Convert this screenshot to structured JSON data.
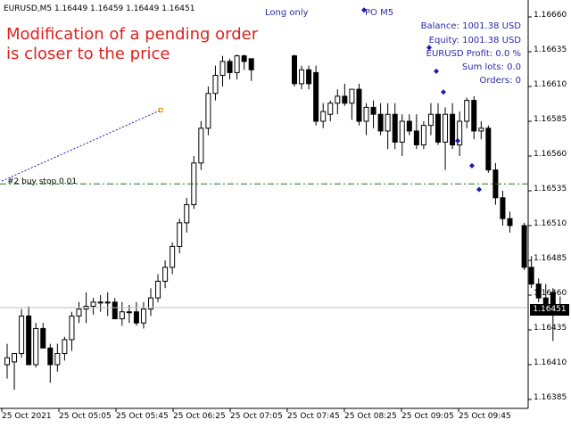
{
  "header": {
    "symbol_line": "EURUSD,M5  1.16449 1.16459 1.16449 1.16451",
    "mode": "Long only",
    "po_label": "PO  M5"
  },
  "annotation": {
    "line1": "Modification of a pending order",
    "line2": "is closer to the price"
  },
  "stats": [
    "Balance: 1001.38 USD",
    "Equity: 1001.38 USD",
    "EURUSD Profit: 0.0 %",
    "Sum lots: 0.0",
    "Orders: 0"
  ],
  "pending_order": {
    "label": "#2 buy stop 0.01",
    "price": 1.1654
  },
  "current_price": {
    "text": "1.16451",
    "value": 1.16451
  },
  "colors": {
    "bull": "#ffffff",
    "bear": "#000000",
    "wick": "#000000",
    "order_line": "#1a7a1a",
    "bid_line": "#bdbdbd",
    "trend_line": "#1a1ab4",
    "markers": "#1a1ab4",
    "annotation": "#e0211d",
    "info_text": "#2a2aa8"
  },
  "chart_data": {
    "type": "candlestick",
    "symbol": "EURUSD",
    "timeframe": "M5",
    "y_ticks": [
      "1.16660",
      "1.16635",
      "1.16610",
      "1.16585",
      "1.16560",
      "1.16535",
      "1.16510",
      "1.16485",
      "1.16460",
      "1.16435",
      "1.16410",
      "1.16385"
    ],
    "y_range": [
      1.1638,
      1.1668
    ],
    "x_ticks": [
      "25 Oct 2021",
      "25 Oct 05:05",
      "25 Oct 05:45",
      "25 Oct 06:25",
      "25 Oct 07:05",
      "25 Oct 07:45",
      "25 Oct 08:25",
      "25 Oct 09:05",
      "25 Oct 09:45"
    ],
    "candles": [
      {
        "o": 1.1641,
        "h": 1.16425,
        "l": 1.164,
        "c": 1.16415
      },
      {
        "o": 1.16412,
        "h": 1.16418,
        "l": 1.16392,
        "c": 1.16418
      },
      {
        "o": 1.16418,
        "h": 1.1645,
        "l": 1.16415,
        "c": 1.16445
      },
      {
        "o": 1.16445,
        "h": 1.16452,
        "l": 1.1641,
        "c": 1.1641
      },
      {
        "o": 1.1641,
        "h": 1.1644,
        "l": 1.16408,
        "c": 1.16436
      },
      {
        "o": 1.16436,
        "h": 1.1644,
        "l": 1.16422,
        "c": 1.16422
      },
      {
        "o": 1.16422,
        "h": 1.16425,
        "l": 1.16397,
        "c": 1.1641
      },
      {
        "o": 1.1641,
        "h": 1.16425,
        "l": 1.16405,
        "c": 1.16418
      },
      {
        "o": 1.16418,
        "h": 1.1643,
        "l": 1.16413,
        "c": 1.16428
      },
      {
        "o": 1.16428,
        "h": 1.16448,
        "l": 1.1642,
        "c": 1.16445
      },
      {
        "o": 1.16445,
        "h": 1.16455,
        "l": 1.1644,
        "c": 1.1645
      },
      {
        "o": 1.1645,
        "h": 1.16462,
        "l": 1.1644,
        "c": 1.16452
      },
      {
        "o": 1.16452,
        "h": 1.16458,
        "l": 1.16446,
        "c": 1.16455
      },
      {
        "o": 1.16455,
        "h": 1.1646,
        "l": 1.16448,
        "c": 1.16455
      },
      {
        "o": 1.16455,
        "h": 1.16462,
        "l": 1.16445,
        "c": 1.16455
      },
      {
        "o": 1.16455,
        "h": 1.16458,
        "l": 1.16443,
        "c": 1.16443
      },
      {
        "o": 1.16443,
        "h": 1.16455,
        "l": 1.16438,
        "c": 1.16448
      },
      {
        "o": 1.16448,
        "h": 1.16453,
        "l": 1.1644,
        "c": 1.16448
      },
      {
        "o": 1.16448,
        "h": 1.16455,
        "l": 1.16438,
        "c": 1.1644
      },
      {
        "o": 1.1644,
        "h": 1.16455,
        "l": 1.16436,
        "c": 1.1645
      },
      {
        "o": 1.1645,
        "h": 1.16465,
        "l": 1.16445,
        "c": 1.16458
      },
      {
        "o": 1.16458,
        "h": 1.16475,
        "l": 1.16455,
        "c": 1.1647
      },
      {
        "o": 1.1647,
        "h": 1.16485,
        "l": 1.16465,
        "c": 1.1648
      },
      {
        "o": 1.1648,
        "h": 1.16498,
        "l": 1.16475,
        "c": 1.16495
      },
      {
        "o": 1.16495,
        "h": 1.16515,
        "l": 1.1649,
        "c": 1.16512
      },
      {
        "o": 1.16512,
        "h": 1.1653,
        "l": 1.16505,
        "c": 1.16525
      },
      {
        "o": 1.16525,
        "h": 1.1656,
        "l": 1.16522,
        "c": 1.16555
      },
      {
        "o": 1.16555,
        "h": 1.16585,
        "l": 1.1655,
        "c": 1.1658
      },
      {
        "o": 1.1658,
        "h": 1.1661,
        "l": 1.16575,
        "c": 1.16605
      },
      {
        "o": 1.16605,
        "h": 1.16625,
        "l": 1.166,
        "c": 1.16618
      },
      {
        "o": 1.16618,
        "h": 1.16632,
        "l": 1.1661,
        "c": 1.16628
      },
      {
        "o": 1.16628,
        "h": 1.1663,
        "l": 1.16615,
        "c": 1.1662
      },
      {
        "o": 1.1662,
        "h": 1.16633,
        "l": 1.16615,
        "c": 1.16632
      },
      {
        "o": 1.16632,
        "h": 1.16633,
        "l": 1.16622,
        "c": 1.16628
      },
      {
        "o": 1.1663,
        "h": 1.1663,
        "l": 1.16614,
        "c": 1.16622
      },
      null,
      null,
      null,
      null,
      null,
      {
        "o": 1.16632,
        "h": 1.16633,
        "l": 1.1661,
        "c": 1.16612
      },
      {
        "o": 1.16612,
        "h": 1.16625,
        "l": 1.16608,
        "c": 1.16622
      },
      {
        "o": 1.16622,
        "h": 1.16625,
        "l": 1.16608,
        "c": 1.16612
      },
      {
        "o": 1.1662,
        "h": 1.16625,
        "l": 1.16582,
        "c": 1.16585
      },
      {
        "o": 1.16585,
        "h": 1.16598,
        "l": 1.1658,
        "c": 1.16592
      },
      {
        "o": 1.1659,
        "h": 1.166,
        "l": 1.16585,
        "c": 1.16598
      },
      {
        "o": 1.16598,
        "h": 1.16608,
        "l": 1.1659,
        "c": 1.16603
      },
      {
        "o": 1.16603,
        "h": 1.16612,
        "l": 1.16596,
        "c": 1.16598
      },
      {
        "o": 1.16598,
        "h": 1.16608,
        "l": 1.16586,
        "c": 1.16608
      },
      {
        "o": 1.16608,
        "h": 1.16612,
        "l": 1.16582,
        "c": 1.16585
      },
      {
        "o": 1.16585,
        "h": 1.16598,
        "l": 1.16575,
        "c": 1.16595
      },
      {
        "o": 1.16595,
        "h": 1.166,
        "l": 1.1658,
        "c": 1.1659
      },
      {
        "o": 1.1659,
        "h": 1.16598,
        "l": 1.16575,
        "c": 1.16578
      },
      {
        "o": 1.16578,
        "h": 1.16598,
        "l": 1.16565,
        "c": 1.1659
      },
      {
        "o": 1.1659,
        "h": 1.16598,
        "l": 1.16565,
        "c": 1.1657
      },
      {
        "o": 1.1657,
        "h": 1.1659,
        "l": 1.1656,
        "c": 1.16585
      },
      {
        "o": 1.16585,
        "h": 1.1659,
        "l": 1.16575,
        "c": 1.16578
      },
      {
        "o": 1.16578,
        "h": 1.1659,
        "l": 1.16565,
        "c": 1.16568
      },
      {
        "o": 1.16568,
        "h": 1.16585,
        "l": 1.16565,
        "c": 1.16582
      },
      {
        "o": 1.16582,
        "h": 1.16598,
        "l": 1.16575,
        "c": 1.1659
      },
      {
        "o": 1.1659,
        "h": 1.16598,
        "l": 1.16568,
        "c": 1.1657
      },
      {
        "o": 1.1657,
        "h": 1.16595,
        "l": 1.1655,
        "c": 1.1659
      },
      {
        "o": 1.1659,
        "h": 1.16598,
        "l": 1.16565,
        "c": 1.16568
      },
      {
        "o": 1.16568,
        "h": 1.16592,
        "l": 1.1656,
        "c": 1.16585
      },
      {
        "o": 1.16585,
        "h": 1.16602,
        "l": 1.1658,
        "c": 1.166
      },
      {
        "o": 1.166,
        "h": 1.16603,
        "l": 1.16572,
        "c": 1.16578
      },
      {
        "o": 1.16578,
        "h": 1.16585,
        "l": 1.16572,
        "c": 1.1658
      },
      {
        "o": 1.1658,
        "h": 1.16582,
        "l": 1.16548,
        "c": 1.1655
      },
      {
        "o": 1.1655,
        "h": 1.16555,
        "l": 1.16525,
        "c": 1.1653
      },
      {
        "o": 1.1653,
        "h": 1.16535,
        "l": 1.1651,
        "c": 1.16515
      },
      {
        "o": 1.16515,
        "h": 1.1652,
        "l": 1.16505,
        "c": 1.1651
      },
      null,
      {
        "o": 1.1651,
        "h": 1.16512,
        "l": 1.16478,
        "c": 1.1648
      },
      {
        "o": 1.1648,
        "h": 1.16488,
        "l": 1.16465,
        "c": 1.16468
      },
      {
        "o": 1.16468,
        "h": 1.16472,
        "l": 1.16455,
        "c": 1.16458
      },
      {
        "o": 1.16458,
        "h": 1.16468,
        "l": 1.16448,
        "c": 1.1645
      },
      {
        "o": 1.16462,
        "h": 1.16465,
        "l": 1.16427,
        "c": 1.1645
      },
      {
        "o": 1.16449,
        "h": 1.16459,
        "l": 1.16449,
        "c": 1.16451
      }
    ],
    "trend_line": {
      "from_x": 2,
      "from_y": 1.16542,
      "to_x": 180,
      "to_y": 1.16593
    },
    "blue_markers": [
      {
        "x": 408,
        "y": 1.16665
      },
      {
        "x": 481,
        "y": 1.16638
      },
      {
        "x": 489,
        "y": 1.16621
      },
      {
        "x": 497,
        "y": 1.16606
      },
      {
        "x": 513,
        "y": 1.16571
      },
      {
        "x": 529,
        "y": 1.16553
      },
      {
        "x": 537,
        "y": 1.16536
      }
    ]
  }
}
